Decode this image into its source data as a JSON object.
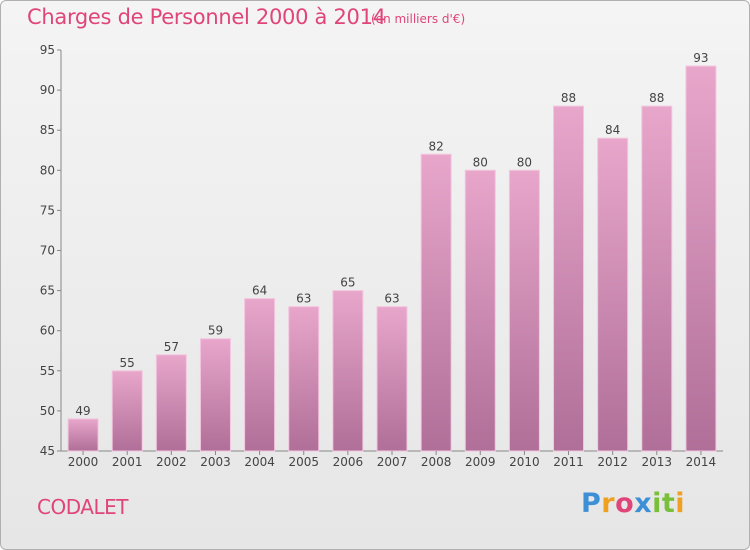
{
  "header": {
    "title": "Charges de Personnel 2000 à 2014",
    "subtitle": "(en milliers d'€)"
  },
  "footer": {
    "commune": "CODALET",
    "logo_text": "Proxiti",
    "logo_colors": [
      "#3d8fd6",
      "#f0a020",
      "#e0457a",
      "#3d8fd6",
      "#7abf3a",
      "#7abf3a",
      "#f0a020"
    ]
  },
  "colors": {
    "accent": "#e0457a",
    "bar_top": "#e8a6cb",
    "bar_bottom": "#b06f98",
    "axis": "#888888"
  },
  "chart_data": {
    "type": "bar",
    "title": "Charges de Personnel 2000 à 2014",
    "subtitle": "(en milliers d'€)",
    "categories": [
      "2000",
      "2001",
      "2002",
      "2003",
      "2004",
      "2005",
      "2006",
      "2007",
      "2008",
      "2009",
      "2010",
      "2011",
      "2012",
      "2013",
      "2014"
    ],
    "values": [
      49,
      55,
      57,
      59,
      64,
      63,
      65,
      63,
      82,
      80,
      80,
      88,
      84,
      88,
      93
    ],
    "ylim": [
      45,
      95
    ],
    "yticks": [
      45,
      50,
      55,
      60,
      65,
      70,
      75,
      80,
      85,
      90,
      95
    ],
    "grid": false,
    "data_labels": true
  }
}
